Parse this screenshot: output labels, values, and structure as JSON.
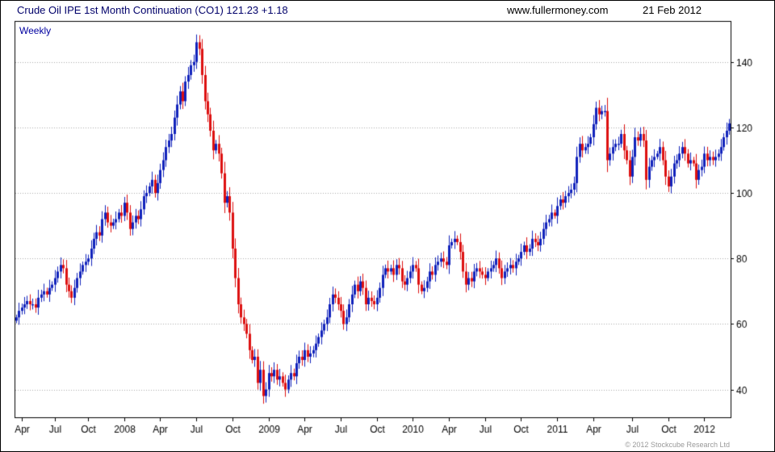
{
  "chart_data": {
    "type": "candlestick",
    "title": "Crude Oil IPE 1st Month Continuation (CO1) 121.23 +1.18",
    "source": "www.fullermoney.com",
    "date": "21 Feb 2012",
    "interval_label": "Weekly",
    "copyright": "© 2012 Stockcube Research Ltd",
    "last_price": 121.23,
    "change": "+1.18",
    "ylim": [
      31.5,
      152.5
    ],
    "yticks": [
      40,
      60,
      80,
      100,
      120,
      140
    ],
    "colors": {
      "up": "#1122bb",
      "down": "#dd1111",
      "grid": "#aaaaaa",
      "axis": "#000000"
    },
    "legend_position": "none",
    "grid": "horizontal-dotted",
    "months": [
      {
        "label": "",
        "closes": [
          62,
          64
        ]
      },
      {
        "label": "Apr",
        "closes": [
          65,
          66,
          67,
          66
        ]
      },
      {
        "label": "",
        "closes": [
          66,
          65,
          68,
          69
        ]
      },
      {
        "label": "",
        "closes": [
          70,
          69,
          71,
          72
        ]
      },
      {
        "label": "Jul",
        "closes": [
          74,
          76,
          78,
          77
        ]
      },
      {
        "label": "",
        "closes": [
          72,
          70,
          68,
          71
        ]
      },
      {
        "label": "",
        "closes": [
          74,
          76,
          78,
          79
        ]
      },
      {
        "label": "Oct",
        "closes": [
          80,
          83,
          86,
          88,
          87
        ]
      },
      {
        "label": "",
        "closes": [
          92,
          94,
          91,
          90
        ]
      },
      {
        "label": "",
        "closes": [
          91,
          92,
          94,
          93
        ]
      },
      {
        "label": "2008",
        "closes": [
          97,
          94,
          89,
          91
        ]
      },
      {
        "label": "",
        "closes": [
          93,
          92,
          95,
          99,
          100
        ]
      },
      {
        "label": "",
        "closes": [
          102,
          104,
          100,
          103
        ]
      },
      {
        "label": "Apr",
        "closes": [
          107,
          110,
          114,
          116
        ]
      },
      {
        "label": "",
        "closes": [
          118,
          123,
          127,
          131,
          128
        ]
      },
      {
        "label": "",
        "closes": [
          134,
          136,
          139,
          140
        ]
      },
      {
        "label": "Jul",
        "closes": [
          146,
          144,
          136,
          128,
          124
        ]
      },
      {
        "label": "",
        "closes": [
          119,
          113,
          115,
          112
        ]
      },
      {
        "label": "",
        "closes": [
          106,
          97,
          99,
          94
        ]
      },
      {
        "label": "Oct",
        "closes": [
          83,
          74,
          66,
          62,
          60
        ]
      },
      {
        "label": "",
        "closes": [
          57,
          52,
          49,
          50
        ]
      },
      {
        "label": "",
        "closes": [
          42,
          46,
          38,
          40
        ]
      },
      {
        "label": "2009",
        "closes": [
          45,
          44,
          46,
          43
        ]
      },
      {
        "label": "",
        "closes": [
          44,
          42,
          40,
          43
        ]
      },
      {
        "label": "",
        "closes": [
          45,
          44,
          48,
          50,
          49
        ]
      },
      {
        "label": "Apr",
        "closes": [
          52,
          50,
          51,
          52
        ]
      },
      {
        "label": "",
        "closes": [
          54,
          56,
          58,
          60,
          62
        ]
      },
      {
        "label": "",
        "closes": [
          66,
          69,
          68,
          66
        ]
      },
      {
        "label": "Jul",
        "closes": [
          64,
          60,
          62,
          66,
          69
        ]
      },
      {
        "label": "",
        "closes": [
          72,
          70,
          73,
          71
        ]
      },
      {
        "label": "",
        "closes": [
          66,
          68,
          67,
          66
        ]
      },
      {
        "label": "Oct",
        "closes": [
          68,
          71,
          75,
          77
        ]
      },
      {
        "label": "",
        "closes": [
          76,
          77,
          75,
          78,
          77
        ]
      },
      {
        "label": "",
        "closes": [
          73,
          72,
          74,
          76
        ]
      },
      {
        "label": "2010",
        "closes": [
          78,
          77,
          72,
          70
        ]
      },
      {
        "label": "",
        "closes": [
          71,
          73,
          76,
          75
        ]
      },
      {
        "label": "",
        "closes": [
          78,
          79,
          80,
          79,
          78
        ]
      },
      {
        "label": "Apr",
        "closes": [
          84,
          85,
          86,
          85
        ]
      },
      {
        "label": "",
        "closes": [
          82,
          76,
          72,
          74
        ]
      },
      {
        "label": "",
        "closes": [
          73,
          76,
          77,
          76,
          75
        ]
      },
      {
        "label": "Jul",
        "closes": [
          74,
          76,
          77,
          78
        ]
      },
      {
        "label": "",
        "closes": [
          80,
          77,
          74,
          76
        ]
      },
      {
        "label": "",
        "closes": [
          77,
          78,
          77,
          79,
          80
        ]
      },
      {
        "label": "Oct",
        "closes": [
          82,
          84,
          82,
          83
        ]
      },
      {
        "label": "",
        "closes": [
          86,
          85,
          84,
          86
        ]
      },
      {
        "label": "",
        "closes": [
          89,
          91,
          92,
          94,
          93
        ]
      },
      {
        "label": "2011",
        "closes": [
          96,
          98,
          97,
          99
        ]
      },
      {
        "label": "",
        "closes": [
          100,
          101,
          103,
          111
        ]
      },
      {
        "label": "",
        "closes": [
          115,
          113,
          114,
          115,
          117
        ]
      },
      {
        "label": "Apr",
        "closes": [
          121,
          126,
          124,
          125
        ]
      },
      {
        "label": "",
        "closes": [
          125,
          110,
          112,
          114,
          115
        ]
      },
      {
        "label": "",
        "closes": [
          115,
          118,
          113,
          110,
          105
        ]
      },
      {
        "label": "Jul",
        "closes": [
          111,
          117,
          116,
          118
        ]
      },
      {
        "label": "",
        "closes": [
          116,
          104,
          108,
          110,
          111
        ]
      },
      {
        "label": "",
        "closes": [
          112,
          114,
          110,
          105
        ]
      },
      {
        "label": "Oct",
        "closes": [
          102,
          105,
          109,
          110
        ]
      },
      {
        "label": "",
        "closes": [
          112,
          114,
          112,
          109,
          110
        ]
      },
      {
        "label": "",
        "closes": [
          109,
          104,
          107,
          108
        ]
      },
      {
        "label": "2012",
        "closes": [
          112,
          110,
          111,
          110,
          111
        ]
      },
      {
        "label": "",
        "closes": [
          112,
          114,
          117,
          119,
          121.23
        ]
      }
    ]
  }
}
